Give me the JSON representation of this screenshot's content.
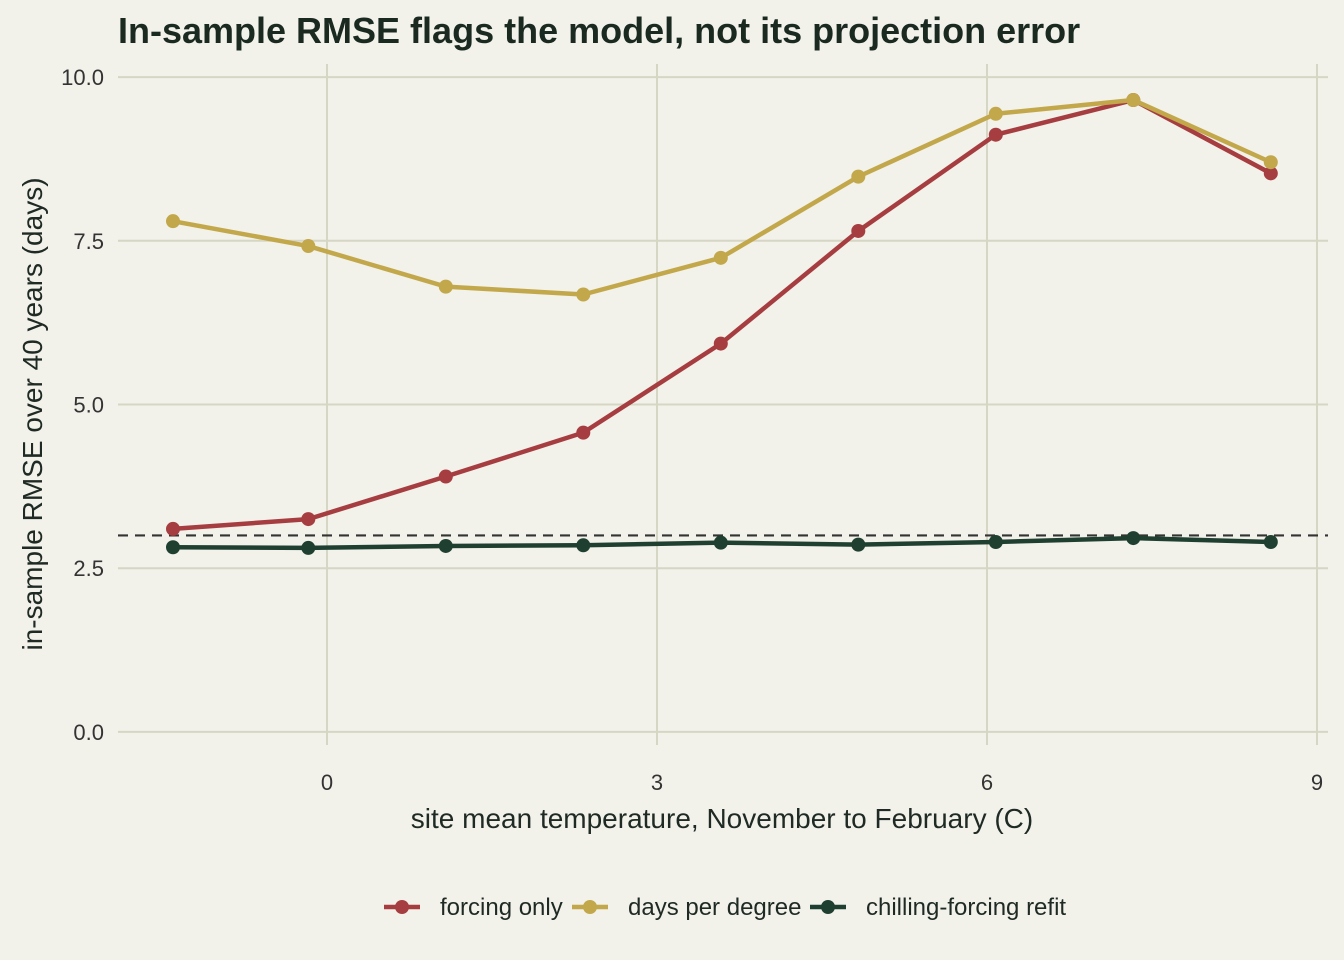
{
  "chart_data": {
    "type": "line",
    "title": "In-sample RMSE flags the model, not its projection error",
    "xlabel": "site mean temperature, November to February (C)",
    "ylabel": "in-sample RMSE over 40 years (days)",
    "xlim": [
      -1.9,
      9.1
    ],
    "ylim": [
      -0.2,
      10.2
    ],
    "x_ticks": [
      0,
      3,
      6,
      9
    ],
    "y_ticks": [
      0,
      2.5,
      5,
      7.5,
      10
    ],
    "x_tick_labels": [
      "0",
      "3",
      "6",
      "9"
    ],
    "y_tick_labels": [
      "0.0",
      "2.5",
      "5.0",
      "7.5",
      "10.0"
    ],
    "reference_line": {
      "y": 3.0,
      "style": "dashed",
      "color": "#333333"
    },
    "x": [
      -1.4,
      -0.17,
      1.08,
      2.33,
      3.58,
      4.83,
      6.08,
      7.33,
      8.58
    ],
    "series": [
      {
        "name": "forcing only",
        "color": "#a63d40",
        "values": [
          3.1,
          3.25,
          3.9,
          4.57,
          5.93,
          7.65,
          9.12,
          9.65,
          8.53
        ]
      },
      {
        "name": "days per degree",
        "color": "#c2a84a",
        "values": [
          7.8,
          7.42,
          6.8,
          6.68,
          7.24,
          8.48,
          9.44,
          9.65,
          8.7
        ]
      },
      {
        "name": "chilling-forcing refit",
        "color": "#1f4030",
        "values": [
          2.82,
          2.81,
          2.84,
          2.85,
          2.89,
          2.86,
          2.9,
          2.96,
          2.9
        ]
      }
    ],
    "grid": true,
    "legend_position": "bottom"
  }
}
